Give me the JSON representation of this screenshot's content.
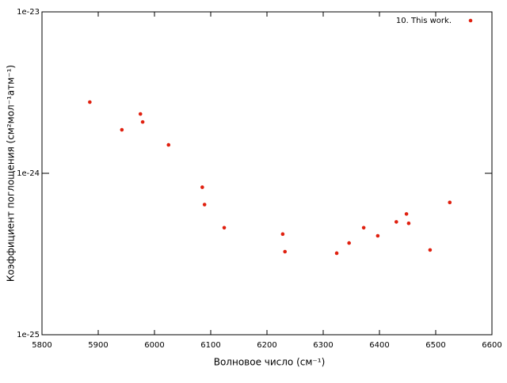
{
  "chart_data": {
    "type": "scatter",
    "xlabel": "Волновое число (см⁻¹)",
    "ylabel": "Коэффициент поглощения (см²мол⁻¹атм⁻¹)",
    "series": [
      {
        "name": "10. This work.",
        "color": "#e0200f",
        "x": [
          5885,
          5942,
          5975,
          5979,
          6025,
          6085,
          6089,
          6124,
          6228,
          6232,
          6324,
          6346,
          6372,
          6397,
          6430,
          6448,
          6452,
          6490,
          6525
        ],
        "values": [
          2.76e-24,
          1.86e-24,
          2.33e-24,
          2.08e-24,
          1.5e-24,
          8.2e-25,
          6.4e-25,
          4.6e-25,
          4.2e-25,
          3.27e-25,
          3.2e-25,
          3.7e-25,
          4.6e-25,
          4.1e-25,
          5e-25,
          5.6e-25,
          4.9e-25,
          3.35e-25,
          6.6e-25
        ]
      }
    ],
    "xlim": [
      5800,
      6600
    ],
    "xticks": [
      5800,
      5900,
      6000,
      6100,
      6200,
      6300,
      6400,
      6500,
      6600
    ],
    "ylim": [
      1e-25,
      1e-23
    ],
    "yticks": [
      {
        "value": 1e-25,
        "label": "1e-25"
      },
      {
        "value": 1e-24,
        "label": "1e-24"
      },
      {
        "value": 1e-23,
        "label": "1e-23"
      }
    ],
    "log_y": true,
    "grid": false,
    "legend": "top-right"
  }
}
